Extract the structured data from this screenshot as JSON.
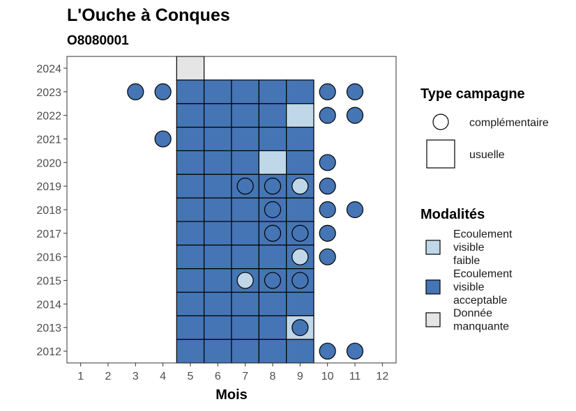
{
  "chart_data": {
    "type": "heatmap",
    "title": "L'Ouche à Conques",
    "subtitle": "O8080001",
    "xlabel": "Mois",
    "ylabel": "",
    "x_ticks": [
      1,
      2,
      3,
      4,
      5,
      6,
      7,
      8,
      9,
      10,
      11,
      12
    ],
    "y_ticks": [
      2012,
      2013,
      2014,
      2015,
      2016,
      2017,
      2018,
      2019,
      2020,
      2021,
      2022,
      2023,
      2024
    ],
    "xlim": [
      0.5,
      12.5
    ],
    "ylim": [
      2011.5,
      2024.5
    ],
    "grid": false,
    "legend_position": "right",
    "modalites": [
      {
        "key": "faible",
        "label": [
          "Ecoulement",
          "visible",
          "faible"
        ],
        "color": "#bfd7e8"
      },
      {
        "key": "acceptable",
        "label": [
          "Ecoulement",
          "visible",
          "acceptable"
        ],
        "color": "#4575b4"
      },
      {
        "key": "manquante",
        "label": [
          "Donnée",
          "manquante"
        ],
        "color": "#e5e5e5"
      }
    ],
    "type_campagne": {
      "title": "Type campagne",
      "items": [
        {
          "key": "complementaire",
          "label": "complémentaire",
          "shape": "circle"
        },
        {
          "key": "usuelle",
          "label": "usuelle",
          "shape": "square"
        }
      ]
    },
    "modalites_title": "Modalités",
    "usuelle": [
      {
        "year": 2012,
        "month": 5,
        "v": "acceptable"
      },
      {
        "year": 2012,
        "month": 6,
        "v": "acceptable"
      },
      {
        "year": 2012,
        "month": 7,
        "v": "acceptable"
      },
      {
        "year": 2012,
        "month": 8,
        "v": "acceptable"
      },
      {
        "year": 2012,
        "month": 9,
        "v": "acceptable"
      },
      {
        "year": 2013,
        "month": 5,
        "v": "acceptable"
      },
      {
        "year": 2013,
        "month": 6,
        "v": "acceptable"
      },
      {
        "year": 2013,
        "month": 7,
        "v": "acceptable"
      },
      {
        "year": 2013,
        "month": 8,
        "v": "acceptable"
      },
      {
        "year": 2013,
        "month": 9,
        "v": "faible"
      },
      {
        "year": 2014,
        "month": 5,
        "v": "acceptable"
      },
      {
        "year": 2014,
        "month": 6,
        "v": "acceptable"
      },
      {
        "year": 2014,
        "month": 7,
        "v": "acceptable"
      },
      {
        "year": 2014,
        "month": 8,
        "v": "acceptable"
      },
      {
        "year": 2014,
        "month": 9,
        "v": "acceptable"
      },
      {
        "year": 2015,
        "month": 5,
        "v": "acceptable"
      },
      {
        "year": 2015,
        "month": 6,
        "v": "acceptable"
      },
      {
        "year": 2015,
        "month": 7,
        "v": "acceptable"
      },
      {
        "year": 2015,
        "month": 8,
        "v": "acceptable"
      },
      {
        "year": 2015,
        "month": 9,
        "v": "acceptable"
      },
      {
        "year": 2016,
        "month": 5,
        "v": "acceptable"
      },
      {
        "year": 2016,
        "month": 6,
        "v": "acceptable"
      },
      {
        "year": 2016,
        "month": 7,
        "v": "acceptable"
      },
      {
        "year": 2016,
        "month": 8,
        "v": "acceptable"
      },
      {
        "year": 2016,
        "month": 9,
        "v": "acceptable"
      },
      {
        "year": 2017,
        "month": 5,
        "v": "acceptable"
      },
      {
        "year": 2017,
        "month": 6,
        "v": "acceptable"
      },
      {
        "year": 2017,
        "month": 7,
        "v": "acceptable"
      },
      {
        "year": 2017,
        "month": 8,
        "v": "acceptable"
      },
      {
        "year": 2017,
        "month": 9,
        "v": "acceptable"
      },
      {
        "year": 2018,
        "month": 5,
        "v": "acceptable"
      },
      {
        "year": 2018,
        "month": 6,
        "v": "acceptable"
      },
      {
        "year": 2018,
        "month": 7,
        "v": "acceptable"
      },
      {
        "year": 2018,
        "month": 8,
        "v": "acceptable"
      },
      {
        "year": 2018,
        "month": 9,
        "v": "acceptable"
      },
      {
        "year": 2019,
        "month": 5,
        "v": "acceptable"
      },
      {
        "year": 2019,
        "month": 6,
        "v": "acceptable"
      },
      {
        "year": 2019,
        "month": 7,
        "v": "acceptable"
      },
      {
        "year": 2019,
        "month": 8,
        "v": "acceptable"
      },
      {
        "year": 2019,
        "month": 9,
        "v": "acceptable"
      },
      {
        "year": 2020,
        "month": 5,
        "v": "acceptable"
      },
      {
        "year": 2020,
        "month": 6,
        "v": "acceptable"
      },
      {
        "year": 2020,
        "month": 7,
        "v": "acceptable"
      },
      {
        "year": 2020,
        "month": 8,
        "v": "faible"
      },
      {
        "year": 2020,
        "month": 9,
        "v": "acceptable"
      },
      {
        "year": 2021,
        "month": 5,
        "v": "acceptable"
      },
      {
        "year": 2021,
        "month": 6,
        "v": "acceptable"
      },
      {
        "year": 2021,
        "month": 7,
        "v": "acceptable"
      },
      {
        "year": 2021,
        "month": 8,
        "v": "acceptable"
      },
      {
        "year": 2021,
        "month": 9,
        "v": "acceptable"
      },
      {
        "year": 2022,
        "month": 5,
        "v": "acceptable"
      },
      {
        "year": 2022,
        "month": 6,
        "v": "acceptable"
      },
      {
        "year": 2022,
        "month": 7,
        "v": "acceptable"
      },
      {
        "year": 2022,
        "month": 8,
        "v": "acceptable"
      },
      {
        "year": 2022,
        "month": 9,
        "v": "faible"
      },
      {
        "year": 2023,
        "month": 5,
        "v": "acceptable"
      },
      {
        "year": 2023,
        "month": 6,
        "v": "acceptable"
      },
      {
        "year": 2023,
        "month": 7,
        "v": "acceptable"
      },
      {
        "year": 2023,
        "month": 8,
        "v": "acceptable"
      },
      {
        "year": 2023,
        "month": 9,
        "v": "acceptable"
      },
      {
        "year": 2024,
        "month": 5,
        "v": "manquante"
      }
    ],
    "complementaire": [
      {
        "year": 2023,
        "month": 3,
        "v": "acceptable"
      },
      {
        "year": 2023,
        "month": 4,
        "v": "acceptable"
      },
      {
        "year": 2023,
        "month": 10,
        "v": "acceptable"
      },
      {
        "year": 2023,
        "month": 11,
        "v": "acceptable"
      },
      {
        "year": 2022,
        "month": 10,
        "v": "acceptable"
      },
      {
        "year": 2022,
        "month": 11,
        "v": "acceptable"
      },
      {
        "year": 2021,
        "month": 4,
        "v": "acceptable"
      },
      {
        "year": 2020,
        "month": 10,
        "v": "acceptable"
      },
      {
        "year": 2019,
        "month": 7,
        "v": "acceptable"
      },
      {
        "year": 2019,
        "month": 8,
        "v": "acceptable"
      },
      {
        "year": 2019,
        "month": 9,
        "v": "faible"
      },
      {
        "year": 2019,
        "month": 10,
        "v": "acceptable"
      },
      {
        "year": 2018,
        "month": 8,
        "v": "acceptable"
      },
      {
        "year": 2018,
        "month": 10,
        "v": "acceptable"
      },
      {
        "year": 2018,
        "month": 11,
        "v": "acceptable"
      },
      {
        "year": 2017,
        "month": 8,
        "v": "acceptable"
      },
      {
        "year": 2017,
        "month": 9,
        "v": "acceptable"
      },
      {
        "year": 2017,
        "month": 10,
        "v": "acceptable"
      },
      {
        "year": 2016,
        "month": 9,
        "v": "faible"
      },
      {
        "year": 2016,
        "month": 10,
        "v": "acceptable"
      },
      {
        "year": 2015,
        "month": 7,
        "v": "faible"
      },
      {
        "year": 2015,
        "month": 8,
        "v": "acceptable"
      },
      {
        "year": 2015,
        "month": 9,
        "v": "acceptable"
      },
      {
        "year": 2013,
        "month": 9,
        "v": "acceptable"
      },
      {
        "year": 2012,
        "month": 10,
        "v": "acceptable"
      },
      {
        "year": 2012,
        "month": 11,
        "v": "acceptable"
      }
    ]
  }
}
